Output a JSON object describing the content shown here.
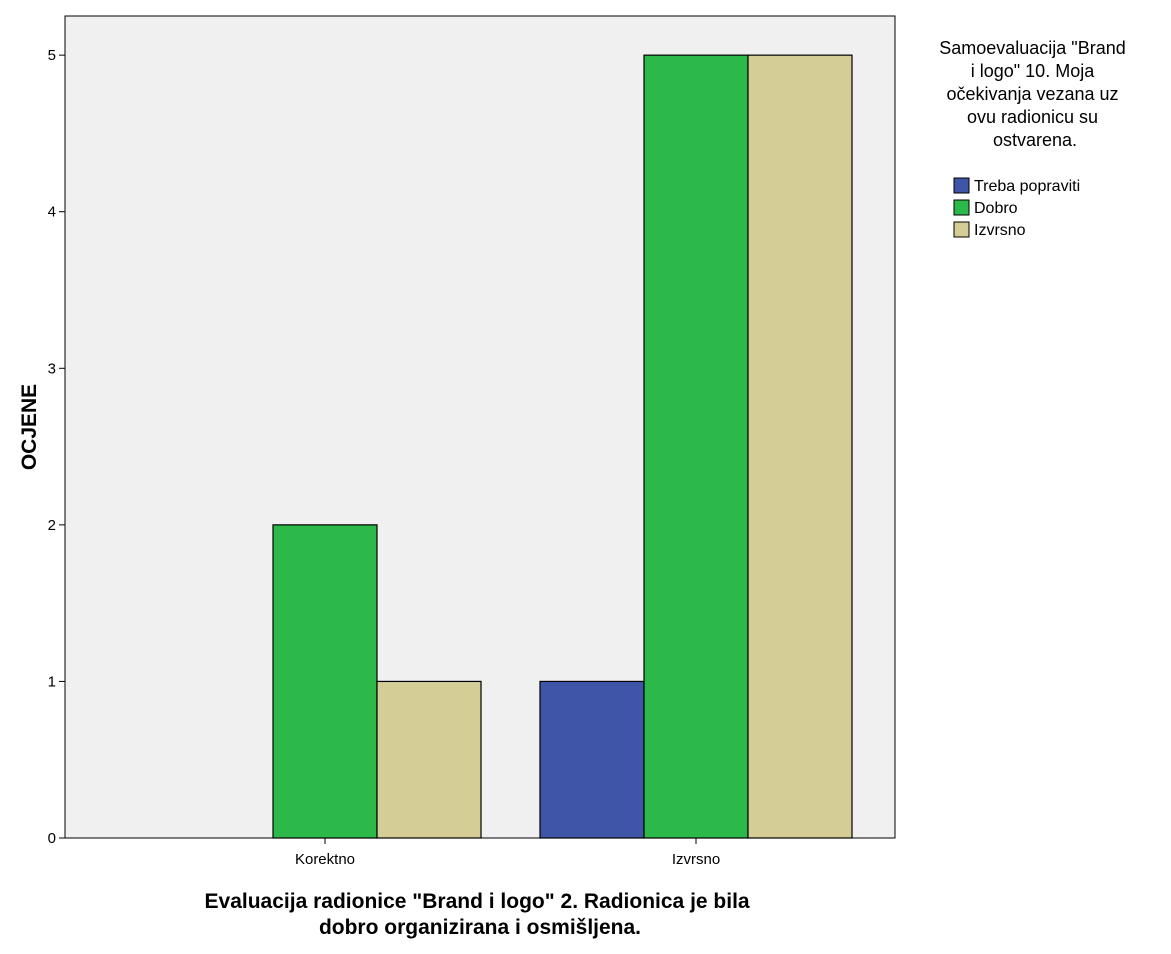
{
  "chart_data": {
    "type": "bar",
    "categories": [
      "Korektno",
      "Izvrsno"
    ],
    "series": [
      {
        "name": "Treba popraviti",
        "values": [
          0,
          1
        ],
        "color": "#3F56A8"
      },
      {
        "name": "Dobro",
        "values": [
          2,
          5
        ],
        "color": "#2DB84A"
      },
      {
        "name": "Izvrsno",
        "values": [
          1,
          5
        ],
        "color": "#D4CD96"
      }
    ],
    "title": "",
    "xlabel_lines": [
      "Evaluacija radionice \"Brand i logo\" 2. Radionica je bila",
      "dobro organizirana i osmišljena."
    ],
    "ylabel": "OCJENE",
    "ylim": [
      0,
      5.25
    ],
    "yticks": [
      "0",
      "1",
      "2",
      "3",
      "4",
      "5"
    ],
    "grid": false,
    "legend": {
      "position": "top-right",
      "title_lines": [
        "Samoevaluacija \"Brand",
        "i logo\" 10. Moja",
        "očekivanja vezana uz",
        "ovu radionicu su",
        "ostvarena."
      ]
    },
    "plot_background": "#F0F0F0"
  }
}
